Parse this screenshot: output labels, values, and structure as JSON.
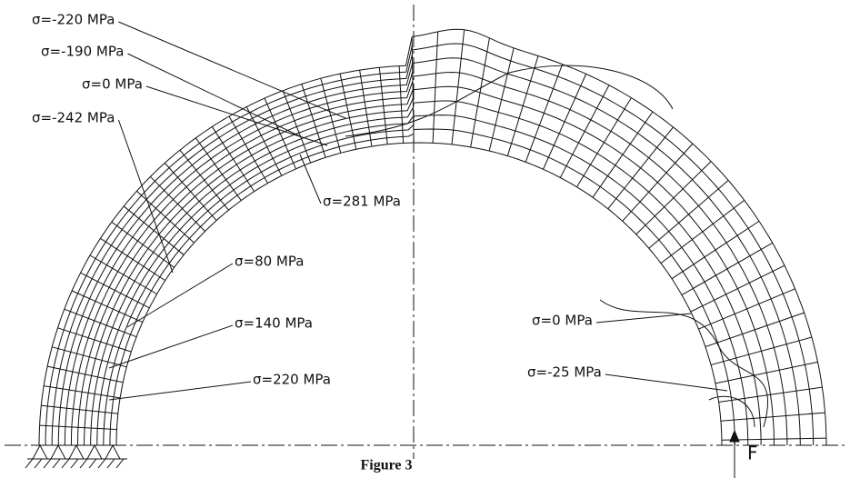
{
  "labels": [
    {
      "text": "σ=-220 MPa"
    },
    {
      "text": "σ=-190 MPa"
    },
    {
      "text": "σ=0 MPa"
    },
    {
      "text": "σ=-242 MPa"
    },
    {
      "text": "σ=281 MPa"
    },
    {
      "text": "σ=80 MPa"
    },
    {
      "text": "σ=140 MPa"
    },
    {
      "text": "σ=220 MPa"
    },
    {
      "text": "σ=0 MPa"
    },
    {
      "text": "σ=-25 MPa"
    }
  ],
  "force_label": "F",
  "caption": "Figure 3"
}
